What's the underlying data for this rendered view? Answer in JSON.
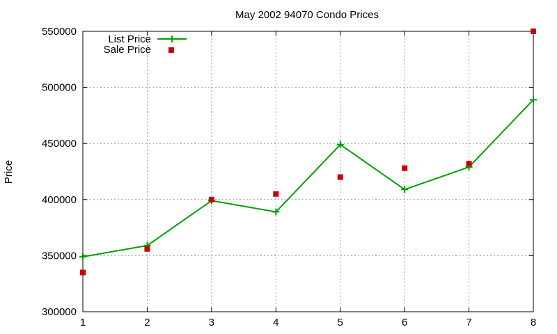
{
  "chart_data": {
    "type": "line",
    "title": "May 2002 94070 Condo Prices",
    "xlabel": "",
    "ylabel": "Price",
    "x": [
      1,
      2,
      3,
      4,
      5,
      6,
      7,
      8
    ],
    "xlim": [
      1,
      8
    ],
    "ylim": [
      300000,
      550000
    ],
    "xticks": [
      "1",
      "2",
      "3",
      "4",
      "5",
      "6",
      "7",
      "8"
    ],
    "yticks": [
      300000,
      350000,
      400000,
      450000,
      500000,
      550000
    ],
    "ytick_labels": [
      "300000",
      "350000",
      "400000",
      "450000",
      "500000",
      "550000"
    ],
    "grid": true,
    "legend_position": "top-left",
    "series": [
      {
        "name": "List Price",
        "style": "linespoints",
        "marker": "plus",
        "color": "#00a000",
        "values": [
          349000,
          359000,
          399000,
          389000,
          449000,
          409000,
          429000,
          489000
        ]
      },
      {
        "name": "Sale Price",
        "style": "points",
        "marker": "square",
        "color": "#cc0000",
        "values": [
          335000,
          356000,
          400000,
          405000,
          420000,
          428000,
          432000,
          550000
        ]
      }
    ]
  }
}
